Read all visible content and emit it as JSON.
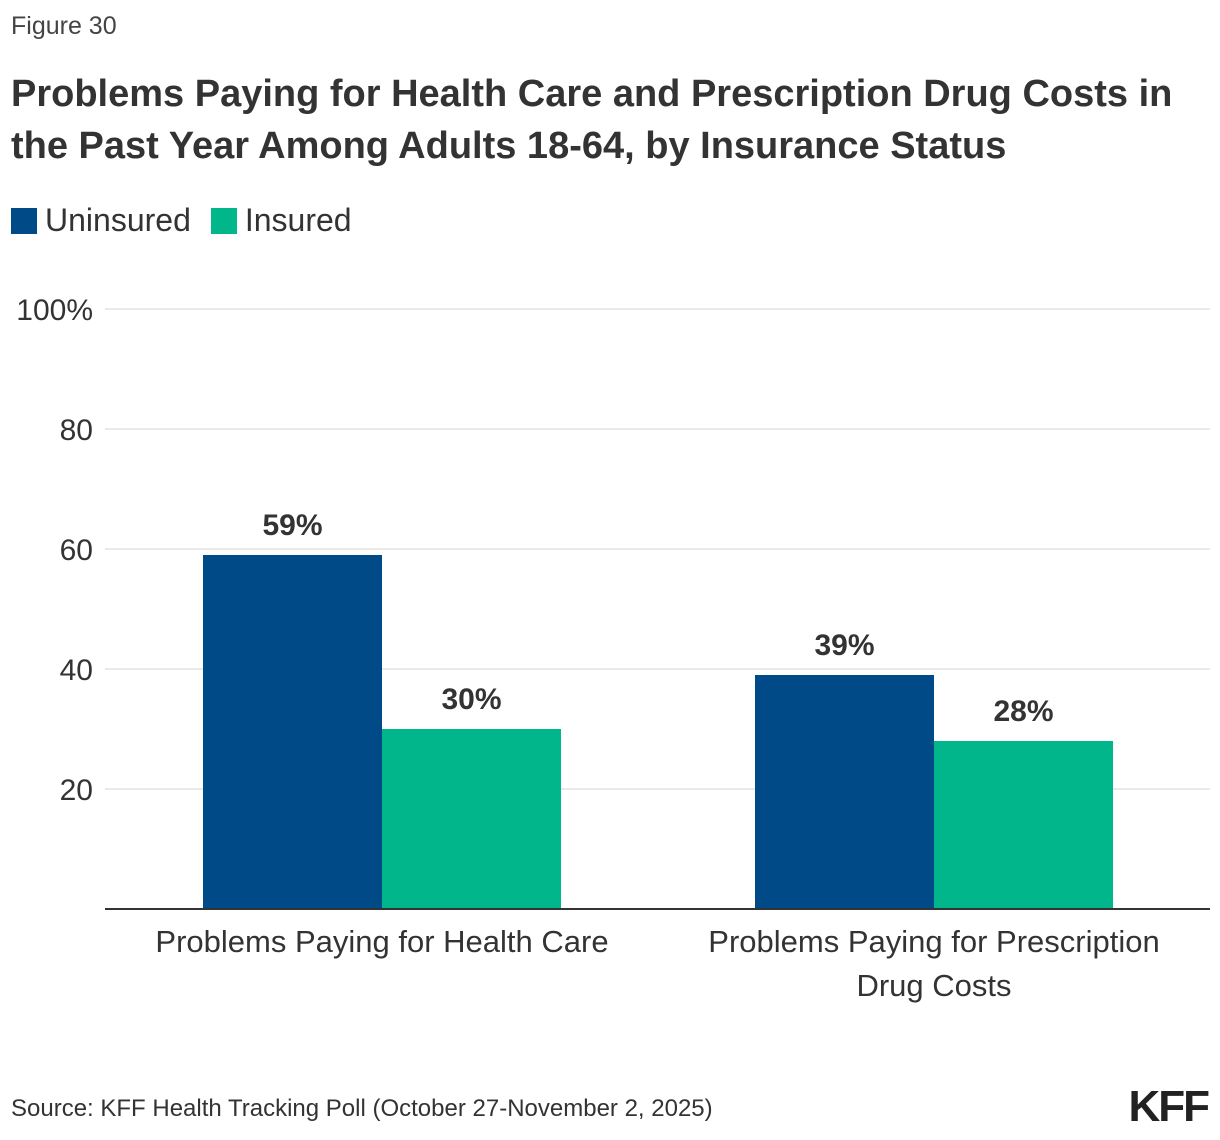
{
  "figure_label": "Figure 30",
  "title": "Problems Paying for Health Care and Prescription Drug Costs in the Past Year Among Adults 18-64, by Insurance Status",
  "source": "Source: KFF Health Tracking Poll (October 27-November 2, 2025)",
  "logo": "KFF",
  "colors": {
    "uninsured": "#004a87",
    "insured": "#00b68a",
    "grid": "#d6d6d6",
    "axis": "#333333"
  },
  "chart_data": {
    "type": "bar",
    "categories": [
      [
        "Problems Paying for Health Care"
      ],
      [
        "Problems Paying for Prescription",
        "Drug Costs"
      ]
    ],
    "series": [
      {
        "name": "Uninsured",
        "values": [
          59,
          39
        ],
        "labels": [
          "59%",
          "39%"
        ]
      },
      {
        "name": "Insured",
        "values": [
          30,
          28
        ],
        "labels": [
          "30%",
          "28%"
        ]
      }
    ],
    "yticks": [
      "20",
      "40",
      "60",
      "80",
      "100%"
    ],
    "ytick_values": [
      20,
      40,
      60,
      80,
      100
    ],
    "ylim": [
      0,
      100
    ],
    "grid": true,
    "legend": "top-left"
  }
}
